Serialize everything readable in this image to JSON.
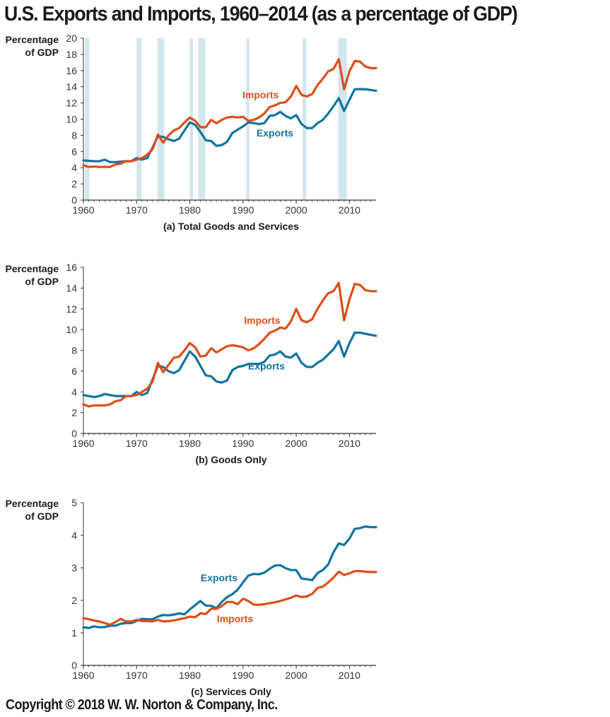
{
  "title": "U.S. Exports and Imports, 1960–2014 (as a percentage of GDP)",
  "copyright": "Copyright © 2018 W. W. Norton & Company, Inc.",
  "colors": {
    "exports": "#1173a0",
    "imports": "#dc4e1a",
    "recession": "#d3e6ee",
    "axis": "#333333"
  },
  "chart_data": [
    {
      "type": "line",
      "title": "(a) Total Goods and Services",
      "ylabel": [
        "Percentage",
        "of GDP"
      ],
      "ylim": [
        0,
        20
      ],
      "yticks": [
        0,
        2,
        4,
        6,
        8,
        10,
        12,
        14,
        16,
        18,
        20
      ],
      "xlim": [
        1960,
        2015
      ],
      "xticks": [
        1960,
        1970,
        1980,
        1990,
        2000,
        2010
      ],
      "recessions": [
        [
          1960.3,
          1961.1
        ],
        [
          1970.0,
          1970.9
        ],
        [
          1973.9,
          1975.2
        ],
        [
          1980.0,
          1980.6
        ],
        [
          1981.6,
          1982.9
        ],
        [
          1990.6,
          1991.2
        ],
        [
          2001.2,
          2001.9
        ],
        [
          2007.9,
          2009.5
        ]
      ],
      "series": [
        {
          "name": "Exports",
          "x": [
            1960,
            1961,
            1962,
            1963,
            1964,
            1965,
            1966,
            1967,
            1968,
            1969,
            1970,
            1971,
            1972,
            1973,
            1974,
            1975,
            1976,
            1977,
            1978,
            1979,
            1980,
            1981,
            1982,
            1983,
            1984,
            1985,
            1986,
            1987,
            1988,
            1989,
            1990,
            1991,
            1992,
            1993,
            1994,
            1995,
            1996,
            1997,
            1998,
            1999,
            2000,
            2001,
            2002,
            2003,
            2004,
            2005,
            2006,
            2007,
            2008,
            2009,
            2010,
            2011,
            2012,
            2013,
            2014,
            2015
          ],
          "values": [
            4.9,
            4.85,
            4.8,
            4.8,
            5.0,
            4.7,
            4.7,
            4.75,
            4.8,
            4.8,
            5.2,
            5.0,
            5.2,
            6.5,
            7.9,
            7.8,
            7.5,
            7.3,
            7.6,
            8.6,
            9.6,
            9.3,
            8.4,
            7.4,
            7.3,
            6.7,
            6.8,
            7.2,
            8.3,
            8.7,
            9.1,
            9.6,
            9.5,
            9.4,
            9.5,
            10.4,
            10.5,
            10.9,
            10.4,
            10.1,
            10.5,
            9.4,
            8.9,
            8.9,
            9.5,
            9.9,
            10.7,
            11.6,
            12.6,
            11.0,
            12.4,
            13.7,
            13.7,
            13.7,
            13.6,
            13.5
          ],
          "label_at": [
            1996,
            8.3
          ]
        },
        {
          "name": "Imports",
          "x": [
            1960,
            1961,
            1962,
            1963,
            1964,
            1965,
            1966,
            1967,
            1968,
            1969,
            1970,
            1971,
            1972,
            1973,
            1974,
            1975,
            1976,
            1977,
            1978,
            1979,
            1980,
            1981,
            1982,
            1983,
            1984,
            1985,
            1986,
            1987,
            1988,
            1989,
            1990,
            1991,
            1992,
            1993,
            1994,
            1995,
            1996,
            1997,
            1998,
            1999,
            2000,
            2001,
            2002,
            2003,
            2004,
            2005,
            2006,
            2007,
            2008,
            2009,
            2010,
            2011,
            2012,
            2013,
            2014,
            2015
          ],
          "values": [
            4.3,
            4.1,
            4.15,
            4.1,
            4.1,
            4.1,
            4.4,
            4.5,
            4.8,
            4.8,
            5.0,
            5.2,
            5.6,
            6.3,
            8.1,
            7.1,
            8.0,
            8.6,
            8.9,
            9.6,
            10.2,
            9.8,
            9.0,
            9.0,
            9.9,
            9.5,
            9.9,
            10.2,
            10.3,
            10.2,
            10.3,
            9.8,
            9.9,
            10.2,
            10.7,
            11.5,
            11.7,
            12.0,
            12.1,
            12.8,
            14.1,
            13.0,
            12.8,
            13.1,
            14.2,
            15.0,
            15.9,
            16.2,
            17.4,
            13.7,
            15.9,
            17.2,
            17.1,
            16.5,
            16.3,
            16.3
          ],
          "label_at": [
            1993.3,
            13.0
          ]
        }
      ]
    },
    {
      "type": "line",
      "title": "(b) Goods Only",
      "ylabel": [
        "Percentage",
        "of GDP"
      ],
      "ylim": [
        0,
        16
      ],
      "yticks": [
        0,
        2,
        4,
        6,
        8,
        10,
        12,
        14,
        16
      ],
      "xlim": [
        1960,
        2015
      ],
      "xticks": [
        1960,
        1970,
        1980,
        1990,
        2000,
        2010
      ],
      "series": [
        {
          "name": "Exports",
          "x": [
            1960,
            1961,
            1962,
            1963,
            1964,
            1965,
            1966,
            1967,
            1968,
            1969,
            1970,
            1971,
            1972,
            1973,
            1974,
            1975,
            1976,
            1977,
            1978,
            1979,
            1980,
            1981,
            1982,
            1983,
            1984,
            1985,
            1986,
            1987,
            1988,
            1989,
            1990,
            1991,
            1992,
            1993,
            1994,
            1995,
            1996,
            1997,
            1998,
            1999,
            2000,
            2001,
            2002,
            2003,
            2004,
            2005,
            2006,
            2007,
            2008,
            2009,
            2010,
            2011,
            2012,
            2013,
            2014,
            2015
          ],
          "values": [
            3.7,
            3.6,
            3.5,
            3.6,
            3.8,
            3.7,
            3.6,
            3.6,
            3.6,
            3.6,
            4.0,
            3.7,
            3.9,
            5.2,
            6.5,
            6.4,
            6.0,
            5.8,
            6.1,
            7.0,
            7.9,
            7.4,
            6.5,
            5.6,
            5.5,
            5.0,
            4.9,
            5.1,
            6.1,
            6.4,
            6.5,
            6.7,
            6.7,
            6.7,
            6.9,
            7.5,
            7.6,
            7.9,
            7.4,
            7.3,
            7.7,
            6.8,
            6.4,
            6.4,
            6.8,
            7.1,
            7.6,
            8.1,
            8.9,
            7.4,
            8.7,
            9.7,
            9.7,
            9.6,
            9.5,
            9.4
          ],
          "label_at": [
            1994.4,
            6.5
          ]
        },
        {
          "name": "Imports",
          "x": [
            1960,
            1961,
            1962,
            1963,
            1964,
            1965,
            1966,
            1967,
            1968,
            1969,
            1970,
            1971,
            1972,
            1973,
            1974,
            1975,
            1976,
            1977,
            1978,
            1979,
            1980,
            1981,
            1982,
            1983,
            1984,
            1985,
            1986,
            1987,
            1988,
            1989,
            1990,
            1991,
            1992,
            1993,
            1994,
            1995,
            1996,
            1997,
            1998,
            1999,
            2000,
            2001,
            2002,
            2003,
            2004,
            2005,
            2006,
            2007,
            2008,
            2009,
            2010,
            2011,
            2012,
            2013,
            2014,
            2015
          ],
          "values": [
            2.8,
            2.6,
            2.7,
            2.7,
            2.7,
            2.8,
            3.1,
            3.2,
            3.6,
            3.6,
            3.7,
            4.0,
            4.3,
            5.0,
            6.8,
            5.9,
            6.6,
            7.3,
            7.4,
            8.0,
            8.7,
            8.3,
            7.4,
            7.5,
            8.2,
            7.8,
            8.1,
            8.4,
            8.5,
            8.4,
            8.3,
            8.0,
            8.2,
            8.6,
            9.1,
            9.7,
            9.9,
            10.2,
            10.1,
            10.8,
            12.0,
            10.9,
            10.7,
            11.0,
            12.0,
            12.8,
            13.5,
            13.7,
            14.5,
            10.9,
            12.9,
            14.4,
            14.3,
            13.8,
            13.7,
            13.7
          ],
          "label_at": [
            1993.6,
            10.9
          ]
        }
      ]
    },
    {
      "type": "line",
      "title": "(c) Services Only",
      "ylabel": [
        "Percentage",
        "of GDP"
      ],
      "ylim": [
        0,
        5
      ],
      "yticks": [
        0,
        1,
        2,
        3,
        4,
        5
      ],
      "xlim": [
        1960,
        2015
      ],
      "xticks": [
        1960,
        1970,
        1980,
        1990,
        2000,
        2010
      ],
      "series": [
        {
          "name": "Exports",
          "x": [
            1960,
            1961,
            1962,
            1963,
            1964,
            1965,
            1966,
            1967,
            1968,
            1969,
            1970,
            1971,
            1972,
            1973,
            1974,
            1975,
            1976,
            1977,
            1978,
            1979,
            1980,
            1981,
            1982,
            1983,
            1984,
            1985,
            1986,
            1987,
            1988,
            1989,
            1990,
            1991,
            1992,
            1993,
            1994,
            1995,
            1996,
            1997,
            1998,
            1999,
            2000,
            2001,
            2002,
            2003,
            2004,
            2005,
            2006,
            2007,
            2008,
            2009,
            2010,
            2011,
            2012,
            2013,
            2014,
            2015
          ],
          "values": [
            1.17,
            1.15,
            1.2,
            1.17,
            1.18,
            1.22,
            1.22,
            1.28,
            1.3,
            1.3,
            1.37,
            1.43,
            1.42,
            1.42,
            1.5,
            1.55,
            1.54,
            1.56,
            1.6,
            1.57,
            1.72,
            1.85,
            1.98,
            1.84,
            1.83,
            1.76,
            1.95,
            2.1,
            2.19,
            2.33,
            2.55,
            2.76,
            2.81,
            2.8,
            2.85,
            2.97,
            3.07,
            3.08,
            2.99,
            2.93,
            2.93,
            2.67,
            2.65,
            2.62,
            2.84,
            2.93,
            3.1,
            3.48,
            3.75,
            3.7,
            3.9,
            4.2,
            4.22,
            4.27,
            4.25,
            4.25
          ],
          "label_at": [
            1985.5,
            2.7
          ]
        },
        {
          "name": "Imports",
          "x": [
            1960,
            1961,
            1962,
            1963,
            1964,
            1965,
            1966,
            1967,
            1968,
            1969,
            1970,
            1971,
            1972,
            1973,
            1974,
            1975,
            1976,
            1977,
            1978,
            1979,
            1980,
            1981,
            1982,
            1983,
            1984,
            1985,
            1986,
            1987,
            1988,
            1989,
            1990,
            1991,
            1992,
            1993,
            1994,
            1995,
            1996,
            1997,
            1998,
            1999,
            2000,
            2001,
            2002,
            2003,
            2004,
            2005,
            2006,
            2007,
            2008,
            2009,
            2010,
            2011,
            2012,
            2013,
            2014,
            2015
          ],
          "values": [
            1.45,
            1.42,
            1.38,
            1.35,
            1.3,
            1.25,
            1.33,
            1.43,
            1.35,
            1.35,
            1.4,
            1.36,
            1.36,
            1.35,
            1.4,
            1.35,
            1.36,
            1.38,
            1.42,
            1.45,
            1.5,
            1.48,
            1.6,
            1.58,
            1.74,
            1.74,
            1.82,
            1.95,
            1.95,
            1.88,
            2.05,
            1.98,
            1.87,
            1.86,
            1.88,
            1.91,
            1.94,
            1.98,
            2.03,
            2.08,
            2.15,
            2.1,
            2.12,
            2.2,
            2.38,
            2.42,
            2.55,
            2.7,
            2.88,
            2.78,
            2.83,
            2.9,
            2.9,
            2.88,
            2.87,
            2.87
          ],
          "label_at": [
            1988.5,
            1.43
          ]
        }
      ]
    }
  ]
}
